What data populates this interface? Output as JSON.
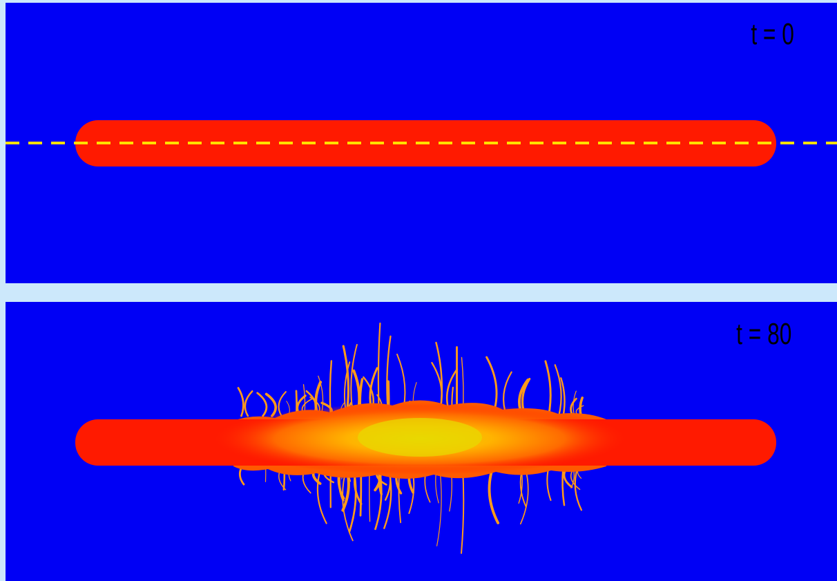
{
  "panels": [
    {
      "time_label": "t = 0"
    },
    {
      "time_label": "t = 80"
    }
  ],
  "colors": {
    "background": "#cce8fb",
    "panel": "#0000f5",
    "jet": "#ff1a00",
    "hot_core": "#e8d800",
    "filaments": "#ff9a1a",
    "axis_dash": "#ffe000"
  }
}
